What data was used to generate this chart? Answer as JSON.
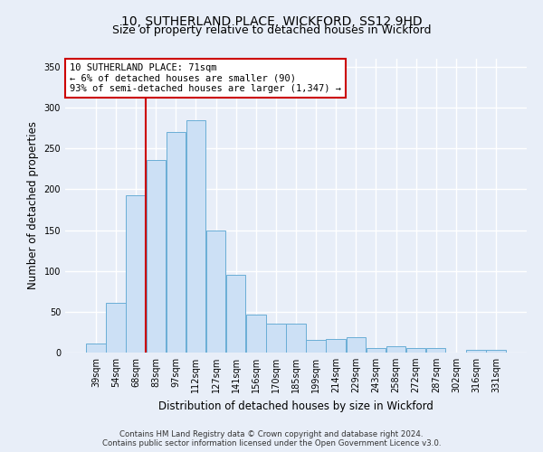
{
  "title": "10, SUTHERLAND PLACE, WICKFORD, SS12 9HD",
  "subtitle": "Size of property relative to detached houses in Wickford",
  "xlabel": "Distribution of detached houses by size in Wickford",
  "ylabel": "Number of detached properties",
  "categories": [
    "39sqm",
    "54sqm",
    "68sqm",
    "83sqm",
    "97sqm",
    "112sqm",
    "127sqm",
    "141sqm",
    "156sqm",
    "170sqm",
    "185sqm",
    "199sqm",
    "214sqm",
    "229sqm",
    "243sqm",
    "258sqm",
    "272sqm",
    "287sqm",
    "302sqm",
    "316sqm",
    "331sqm"
  ],
  "values": [
    11,
    61,
    193,
    236,
    270,
    285,
    149,
    95,
    47,
    35,
    35,
    16,
    17,
    19,
    5,
    8,
    5,
    6,
    0,
    3,
    3
  ],
  "bar_color": "#cce0f5",
  "bar_edge_color": "#6aaed6",
  "annotation_line1": "10 SUTHERLAND PLACE: 71sqm",
  "annotation_line2": "← 6% of detached houses are smaller (90)",
  "annotation_line3": "93% of semi-detached houses are larger (1,347) →",
  "annotation_box_color": "#ffffff",
  "annotation_box_edge_color": "#cc0000",
  "vline_color": "#cc0000",
  "vline_x": 2.5,
  "ylim": [
    0,
    360
  ],
  "yticks": [
    0,
    50,
    100,
    150,
    200,
    250,
    300,
    350
  ],
  "footer1": "Contains HM Land Registry data © Crown copyright and database right 2024.",
  "footer2": "Contains public sector information licensed under the Open Government Licence v3.0.",
  "bg_color": "#e8eef8",
  "plot_bg_color": "#e8eef8",
  "grid_color": "#ffffff",
  "title_fontsize": 10,
  "tick_fontsize": 7,
  "bar_width": 0.97
}
